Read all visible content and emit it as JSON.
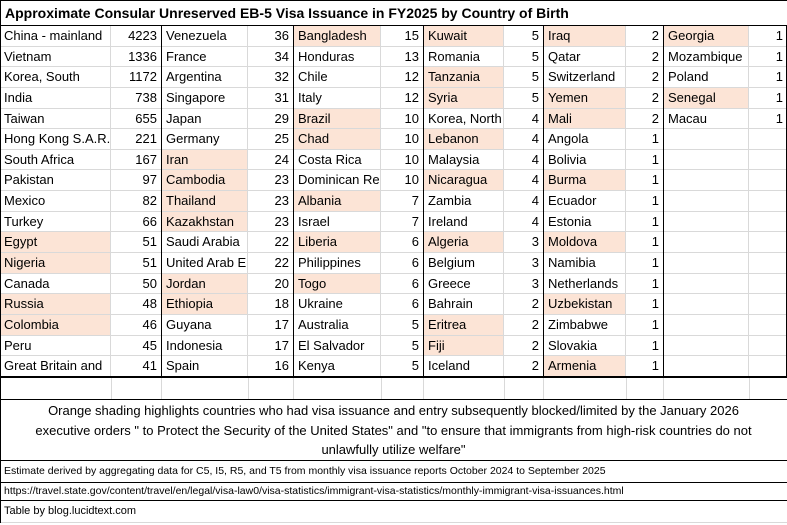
{
  "title": "Approximate Consular Unreserved EB-5 Visa Issuance in FY2025 by Country of Birth",
  "colors": {
    "highlight": "#FCE4D6",
    "gridline": "#D9D9D9",
    "border": "#000000"
  },
  "chart_data": {
    "type": "table",
    "title": "Approximate Consular Unreserved EB-5 Visa Issuance in FY2025 by Country of Birth",
    "highlight_meaning": "orange = visa issuance and entry subsequently blocked/limited by January 2026 executive orders",
    "column_pairs": [
      {
        "rows": [
          {
            "country": "China - mainland",
            "value": 4223,
            "highlight": false
          },
          {
            "country": "Vietnam",
            "value": 1336,
            "highlight": false
          },
          {
            "country": "Korea, South",
            "value": 1172,
            "highlight": false
          },
          {
            "country": "India",
            "value": 738,
            "highlight": false
          },
          {
            "country": "Taiwan",
            "value": 655,
            "highlight": false
          },
          {
            "country": "Hong Kong S.A.R.",
            "value": 221,
            "highlight": false
          },
          {
            "country": "South Africa",
            "value": 167,
            "highlight": false
          },
          {
            "country": "Pakistan",
            "value": 97,
            "highlight": false
          },
          {
            "country": "Mexico",
            "value": 82,
            "highlight": false
          },
          {
            "country": "Turkey",
            "value": 66,
            "highlight": false
          },
          {
            "country": "Egypt",
            "value": 51,
            "highlight": true
          },
          {
            "country": "Nigeria",
            "value": 51,
            "highlight": true
          },
          {
            "country": "Canada",
            "value": 50,
            "highlight": false
          },
          {
            "country": "Russia",
            "value": 48,
            "highlight": true
          },
          {
            "country": "Colombia",
            "value": 46,
            "highlight": true
          },
          {
            "country": "Peru",
            "value": 45,
            "highlight": false
          },
          {
            "country": "Great Britain and",
            "value": 41,
            "highlight": false
          }
        ]
      },
      {
        "rows": [
          {
            "country": "Venezuela",
            "value": 36,
            "highlight": false
          },
          {
            "country": "France",
            "value": 34,
            "highlight": false
          },
          {
            "country": "Argentina",
            "value": 32,
            "highlight": false
          },
          {
            "country": "Singapore",
            "value": 31,
            "highlight": false
          },
          {
            "country": "Japan",
            "value": 29,
            "highlight": false
          },
          {
            "country": "Germany",
            "value": 25,
            "highlight": false
          },
          {
            "country": "Iran",
            "value": 24,
            "highlight": true
          },
          {
            "country": "Cambodia",
            "value": 23,
            "highlight": true
          },
          {
            "country": "Thailand",
            "value": 23,
            "highlight": true
          },
          {
            "country": "Kazakhstan",
            "value": 23,
            "highlight": true
          },
          {
            "country": "Saudi Arabia",
            "value": 22,
            "highlight": false
          },
          {
            "country": "United Arab E",
            "value": 22,
            "highlight": false
          },
          {
            "country": "Jordan",
            "value": 20,
            "highlight": true
          },
          {
            "country": "Ethiopia",
            "value": 18,
            "highlight": true
          },
          {
            "country": "Guyana",
            "value": 17,
            "highlight": false
          },
          {
            "country": "Indonesia",
            "value": 17,
            "highlight": false
          },
          {
            "country": "Spain",
            "value": 16,
            "highlight": false
          }
        ]
      },
      {
        "rows": [
          {
            "country": "Bangladesh",
            "value": 15,
            "highlight": true
          },
          {
            "country": "Honduras",
            "value": 13,
            "highlight": false
          },
          {
            "country": "Chile",
            "value": 12,
            "highlight": false
          },
          {
            "country": "Italy",
            "value": 12,
            "highlight": false
          },
          {
            "country": "Brazil",
            "value": 10,
            "highlight": true
          },
          {
            "country": "Chad",
            "value": 10,
            "highlight": true
          },
          {
            "country": "Costa Rica",
            "value": 10,
            "highlight": false
          },
          {
            "country": "Dominican Re",
            "value": 10,
            "highlight": false
          },
          {
            "country": "Albania",
            "value": 7,
            "highlight": true
          },
          {
            "country": "Israel",
            "value": 7,
            "highlight": false
          },
          {
            "country": "Liberia",
            "value": 6,
            "highlight": true
          },
          {
            "country": "Philippines",
            "value": 6,
            "highlight": false
          },
          {
            "country": "Togo",
            "value": 6,
            "highlight": true
          },
          {
            "country": "Ukraine",
            "value": 6,
            "highlight": false
          },
          {
            "country": "Australia",
            "value": 5,
            "highlight": false
          },
          {
            "country": "El Salvador",
            "value": 5,
            "highlight": false
          },
          {
            "country": "Kenya",
            "value": 5,
            "highlight": false
          }
        ]
      },
      {
        "rows": [
          {
            "country": "Kuwait",
            "value": 5,
            "highlight": true
          },
          {
            "country": "Romania",
            "value": 5,
            "highlight": false
          },
          {
            "country": "Tanzania",
            "value": 5,
            "highlight": true
          },
          {
            "country": "Syria",
            "value": 5,
            "highlight": true
          },
          {
            "country": "Korea, North",
            "value": 4,
            "highlight": false
          },
          {
            "country": "Lebanon",
            "value": 4,
            "highlight": true
          },
          {
            "country": "Malaysia",
            "value": 4,
            "highlight": false
          },
          {
            "country": "Nicaragua",
            "value": 4,
            "highlight": true
          },
          {
            "country": "Zambia",
            "value": 4,
            "highlight": false
          },
          {
            "country": "Ireland",
            "value": 4,
            "highlight": false
          },
          {
            "country": "Algeria",
            "value": 3,
            "highlight": true
          },
          {
            "country": "Belgium",
            "value": 3,
            "highlight": false
          },
          {
            "country": "Greece",
            "value": 3,
            "highlight": false
          },
          {
            "country": "Bahrain",
            "value": 2,
            "highlight": false
          },
          {
            "country": "Eritrea",
            "value": 2,
            "highlight": true
          },
          {
            "country": "Fiji",
            "value": 2,
            "highlight": true
          },
          {
            "country": "Iceland",
            "value": 2,
            "highlight": false
          }
        ]
      },
      {
        "rows": [
          {
            "country": "Iraq",
            "value": 2,
            "highlight": true
          },
          {
            "country": "Qatar",
            "value": 2,
            "highlight": false
          },
          {
            "country": "Switzerland",
            "value": 2,
            "highlight": false
          },
          {
            "country": "Yemen",
            "value": 2,
            "highlight": true
          },
          {
            "country": "Mali",
            "value": 2,
            "highlight": true
          },
          {
            "country": "Angola",
            "value": 1,
            "highlight": false
          },
          {
            "country": "Bolivia",
            "value": 1,
            "highlight": false
          },
          {
            "country": "Burma",
            "value": 1,
            "highlight": true
          },
          {
            "country": "Ecuador",
            "value": 1,
            "highlight": false
          },
          {
            "country": "Estonia",
            "value": 1,
            "highlight": false
          },
          {
            "country": "Moldova",
            "value": 1,
            "highlight": true
          },
          {
            "country": "Namibia",
            "value": 1,
            "highlight": false
          },
          {
            "country": "Netherlands",
            "value": 1,
            "highlight": false
          },
          {
            "country": "Uzbekistan",
            "value": 1,
            "highlight": true
          },
          {
            "country": "Zimbabwe",
            "value": 1,
            "highlight": false
          },
          {
            "country": "Slovakia",
            "value": 1,
            "highlight": false
          },
          {
            "country": "Armenia",
            "value": 1,
            "highlight": true
          }
        ]
      },
      {
        "rows": [
          {
            "country": "Georgia",
            "value": 1,
            "highlight": true
          },
          {
            "country": "Mozambique",
            "value": 1,
            "highlight": false
          },
          {
            "country": "Poland",
            "value": 1,
            "highlight": false
          },
          {
            "country": "Senegal",
            "value": 1,
            "highlight": true
          },
          {
            "country": "Macau",
            "value": 1,
            "highlight": false
          }
        ]
      }
    ]
  },
  "footer": {
    "shading_note": "Orange shading highlights countries who  had visa issuance and entry subsequently blocked/limited by the January 2026\nexecutive orders \" to Protect the Security of the United States\" and \"to ensure that immigrants from high-risk countries do not\nunlawfully utilize welfare\"",
    "estimate_note": "Estimate derived by aggregating data for C5, I5, R5, and T5 from monthly visa issuance reports October 2024 to September 2025",
    "source_url": "https://travel.state.gov/content/travel/en/legal/visa-law0/visa-statistics/immigrant-visa-statistics/monthly-immigrant-visa-issuances.html",
    "credit": "Table by blog.lucidtext.com"
  }
}
